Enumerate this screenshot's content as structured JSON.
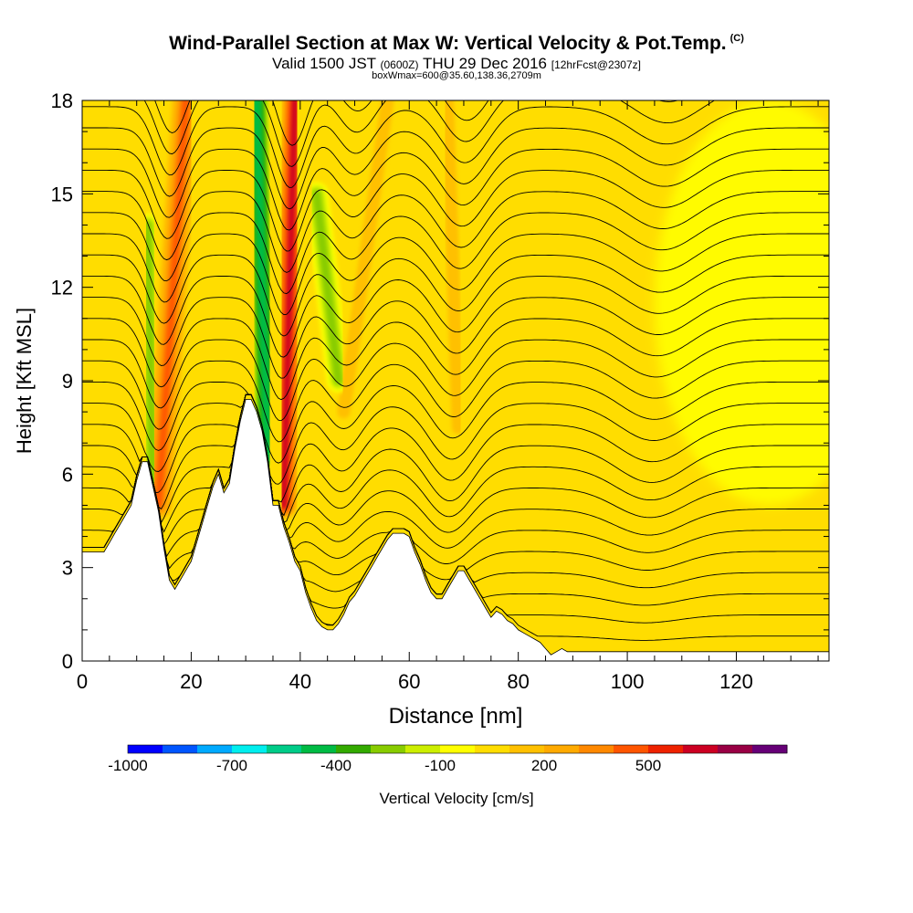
{
  "chart_data": {
    "type": "heatmap",
    "title": "Wind-Parallel Section at Max W: Vertical Velocity & Pot.Temp.",
    "title_mark": "(C)",
    "subtitle": {
      "main1": "Valid 1500 JST",
      "zulu": "(0600Z)",
      "main2": "THU 29 Dec 2016",
      "forecast": "[12hrFcst@2307z]"
    },
    "subsubtitle": "boxWmax=600@35.60,138.36,2709m",
    "xlabel": "Distance [nm]",
    "ylabel": "Height [Kft MSL]",
    "xlim": [
      0,
      137
    ],
    "ylim": [
      0,
      18
    ],
    "x_ticks": [
      "0",
      "20",
      "40",
      "60",
      "80",
      "100",
      "120"
    ],
    "y_ticks": [
      "0",
      "3",
      "6",
      "9",
      "12",
      "15",
      "18"
    ],
    "colorbar": {
      "label": "Vertical Velocity [cm/s]",
      "tick_labels": [
        "-1000",
        "-700",
        "-400",
        "-100",
        "200",
        "500"
      ],
      "colors": [
        "#0000ff",
        "#0055ff",
        "#00aaff",
        "#00eeee",
        "#00cc88",
        "#00bb44",
        "#33aa00",
        "#88cc00",
        "#ccee00",
        "#ffff00",
        "#ffdd00",
        "#ffc000",
        "#ffaa00",
        "#ff8800",
        "#ff5500",
        "#ee2200",
        "#cc0022",
        "#990044",
        "#660077"
      ]
    },
    "terrain": [
      [
        0,
        3.5
      ],
      [
        4,
        3.5
      ],
      [
        5,
        3.8
      ],
      [
        6,
        4.1
      ],
      [
        7,
        4.4
      ],
      [
        8,
        4.7
      ],
      [
        9,
        5.0
      ],
      [
        10,
        5.8
      ],
      [
        11,
        6.4
      ],
      [
        12,
        6.4
      ],
      [
        13,
        5.6
      ],
      [
        14,
        4.8
      ],
      [
        15,
        3.6
      ],
      [
        16,
        2.6
      ],
      [
        17,
        2.3
      ],
      [
        18,
        2.6
      ],
      [
        19,
        2.9
      ],
      [
        20,
        3.2
      ],
      [
        21,
        3.8
      ],
      [
        22,
        4.4
      ],
      [
        23,
        5.0
      ],
      [
        24,
        5.6
      ],
      [
        25,
        6.0
      ],
      [
        26,
        5.4
      ],
      [
        27,
        5.7
      ],
      [
        28,
        6.8
      ],
      [
        29,
        7.7
      ],
      [
        30,
        8.4
      ],
      [
        31,
        8.4
      ],
      [
        32,
        8.0
      ],
      [
        33,
        7.4
      ],
      [
        34,
        6.4
      ],
      [
        35,
        5.0
      ],
      [
        36,
        5.0
      ],
      [
        37,
        4.3
      ],
      [
        38,
        3.8
      ],
      [
        39,
        3.2
      ],
      [
        40,
        2.9
      ],
      [
        41,
        2.2
      ],
      [
        42,
        1.7
      ],
      [
        43,
        1.3
      ],
      [
        44,
        1.1
      ],
      [
        45,
        1.0
      ],
      [
        46,
        1.0
      ],
      [
        47,
        1.2
      ],
      [
        48,
        1.5
      ],
      [
        49,
        1.9
      ],
      [
        50,
        2.1
      ],
      [
        51,
        2.4
      ],
      [
        52,
        2.7
      ],
      [
        53,
        3.0
      ],
      [
        54,
        3.3
      ],
      [
        55,
        3.6
      ],
      [
        56,
        3.9
      ],
      [
        57,
        4.1
      ],
      [
        58,
        4.1
      ],
      [
        59,
        4.1
      ],
      [
        60,
        4.0
      ],
      [
        61,
        3.5
      ],
      [
        62,
        3.1
      ],
      [
        63,
        2.6
      ],
      [
        64,
        2.2
      ],
      [
        65,
        2.0
      ],
      [
        66,
        2.0
      ],
      [
        67,
        2.3
      ],
      [
        68,
        2.6
      ],
      [
        69,
        2.9
      ],
      [
        70,
        2.9
      ],
      [
        71,
        2.6
      ],
      [
        72,
        2.3
      ],
      [
        73,
        2.0
      ],
      [
        74,
        1.7
      ],
      [
        75,
        1.4
      ],
      [
        76,
        1.6
      ],
      [
        77,
        1.5
      ],
      [
        78,
        1.3
      ],
      [
        79,
        1.2
      ],
      [
        80,
        1.0
      ],
      [
        81,
        0.9
      ],
      [
        82,
        0.8
      ],
      [
        83,
        0.7
      ],
      [
        84,
        0.6
      ],
      [
        85,
        0.4
      ],
      [
        86,
        0.2
      ],
      [
        87,
        0.3
      ],
      [
        88,
        0.4
      ],
      [
        89,
        0.3
      ],
      [
        90,
        0.3
      ],
      [
        137,
        0.3
      ]
    ],
    "ascent_bands": [
      {
        "x_bottom": 14,
        "y_bottom": 5.0,
        "x_top": 19,
        "y_top": 18,
        "velocity": 450
      },
      {
        "x_bottom": 37,
        "y_bottom": 5.0,
        "x_top": 39,
        "y_top": 18,
        "velocity": 600
      },
      {
        "x_bottom": 48,
        "y_bottom": 8.0,
        "x_top": 56,
        "y_top": 18,
        "velocity": 150
      },
      {
        "x_bottom": 69,
        "y_bottom": 7.5,
        "x_top": 67,
        "y_top": 18,
        "velocity": 150
      }
    ],
    "descent_bands": [
      {
        "x_bottom": 13,
        "y_bottom": 5.0,
        "x_top": 12,
        "y_top": 14,
        "velocity": -300
      },
      {
        "x_bottom": 34,
        "y_bottom": 6.5,
        "x_top": 32,
        "y_top": 18,
        "velocity": -500
      },
      {
        "x_bottom": 47,
        "y_bottom": 9.0,
        "x_top": 43,
        "y_top": 15,
        "velocity": -250
      }
    ],
    "background_velocity": 50,
    "weak_descent_region": {
      "x": [
        95,
        137
      ],
      "y": [
        5,
        18
      ],
      "velocity": -100
    },
    "potential_temperature_isentropes": {
      "count": 28,
      "label_value": "10"
    },
    "grid": false,
    "legend": "bottom"
  }
}
